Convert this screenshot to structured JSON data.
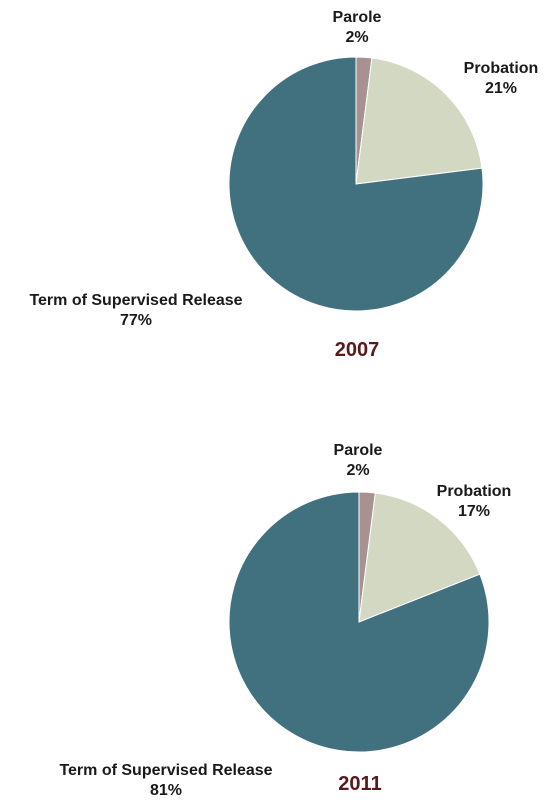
{
  "chart_data": [
    {
      "type": "pie",
      "title": "2007",
      "slices": [
        {
          "label": "Parole",
          "value": 2,
          "pct_label": "2%",
          "color": "#a79191"
        },
        {
          "label": "Probation",
          "value": 21,
          "pct_label": "21%",
          "color": "#d3d8c3"
        },
        {
          "label": "Term of Supervised Release",
          "value": 77,
          "pct_label": "77%",
          "color": "#41707f"
        }
      ]
    },
    {
      "type": "pie",
      "title": "2011",
      "slices": [
        {
          "label": "Parole",
          "value": 2,
          "pct_label": "2%",
          "color": "#a79191"
        },
        {
          "label": "Probation",
          "value": 17,
          "pct_label": "17%",
          "color": "#d3d8c3"
        },
        {
          "label": "Term of Supervised Release",
          "value": 81,
          "pct_label": "81%",
          "color": "#41707f"
        }
      ]
    }
  ],
  "colors": {
    "year_label": "#5a1a1a"
  }
}
